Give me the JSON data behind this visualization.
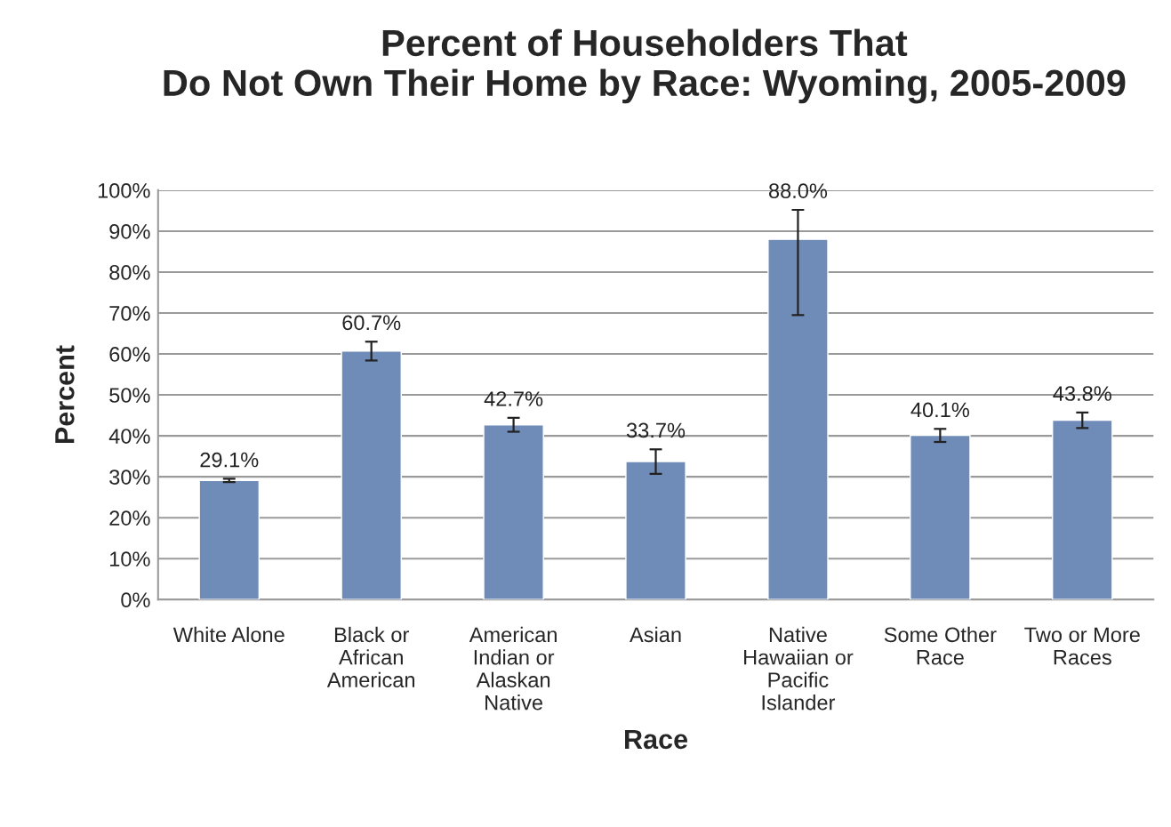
{
  "chart_data": {
    "type": "bar",
    "title": "Percent of Householders That\nDo Not Own Their Home by Race: Wyoming, 2005-2009",
    "xlabel": "Race",
    "ylabel": "Percent",
    "categories": [
      "White Alone",
      "Black or\nAfrican\nAmerican",
      "American\nIndian or\nAlaskan\nNative",
      "Asian",
      "Native\nHawaiian or\nPacific\nIslander",
      "Some Other\nRace",
      "Two or More\nRaces"
    ],
    "values": [
      29.1,
      60.7,
      42.7,
      33.7,
      88.0,
      40.1,
      43.8
    ],
    "errors": [
      0.4,
      2.3,
      1.7,
      3.0,
      [
        69.5,
        95.2
      ],
      1.6,
      1.9
    ],
    "value_labels": [
      "29.1%",
      "60.7%",
      "42.7%",
      "33.7%",
      "88.0%",
      "40.1%",
      "43.8%"
    ],
    "color": "#6f8bb8",
    "ylim": [
      0,
      100
    ],
    "yticks": [
      {
        "value": 0,
        "label": "0%"
      },
      {
        "value": 10,
        "label": "10%"
      },
      {
        "value": 20,
        "label": "20%"
      },
      {
        "value": 30,
        "label": "30%"
      },
      {
        "value": 40,
        "label": "40%"
      },
      {
        "value": 50,
        "label": "50%"
      },
      {
        "value": 60,
        "label": "60%"
      },
      {
        "value": 70,
        "label": "70%"
      },
      {
        "value": 80,
        "label": "80%"
      },
      {
        "value": 90,
        "label": "90%"
      },
      {
        "value": 100,
        "label": "100%"
      }
    ],
    "grid": "y",
    "legend": false
  }
}
